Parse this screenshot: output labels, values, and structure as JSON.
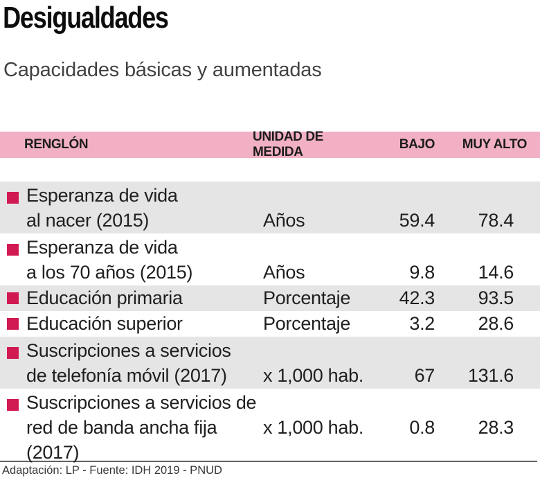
{
  "header": {
    "title": "Desigualdades",
    "subtitle": "Capacidades básicas y aumentadas"
  },
  "table": {
    "columns": {
      "item": "RENGLÓN",
      "unit": "UNIDAD DE MEDIDA",
      "low": "BAJO",
      "very_high": "MUY ALTO"
    },
    "rows": [
      {
        "lines": [
          "Esperanza de vida",
          "al nacer (2015)"
        ],
        "unit": "Años",
        "low": "59.4",
        "very_high": "78.4"
      },
      {
        "lines": [
          "Esperanza de vida",
          "a los 70 años (2015)"
        ],
        "unit": "Años",
        "low": "9.8",
        "very_high": "14.6"
      },
      {
        "lines": [
          "Educación primaria"
        ],
        "unit": "Porcentaje",
        "low": "42.3",
        "very_high": "93.5"
      },
      {
        "lines": [
          "Educación superior"
        ],
        "unit": "Porcentaje",
        "low": "3.2",
        "very_high": "28.6"
      },
      {
        "lines": [
          "Suscripciones a servicios",
          "de telefonía móvil (2017)"
        ],
        "unit": "x 1,000 hab.",
        "low": "67",
        "very_high": "131.6"
      },
      {
        "lines": [
          "Suscripciones a servicios de",
          "red de banda ancha fija (2017)"
        ],
        "unit": "x 1,000 hab.",
        "low": "0.8",
        "very_high": "28.3"
      }
    ]
  },
  "footer": {
    "credit": "Adaptación: LP - Fuente: IDH 2019 - PNUD"
  },
  "colors": {
    "header_band": "#f2b0c5",
    "row_shade": "#e5e5e6",
    "bullet": "#d21a52"
  },
  "chart_data": {
    "type": "table",
    "title": "Desigualdades",
    "subtitle": "Capacidades básicas y aumentadas",
    "columns": [
      "RENGLÓN",
      "UNIDAD DE MEDIDA",
      "BAJO",
      "MUY ALTO"
    ],
    "rows": [
      [
        "Esperanza de vida al nacer (2015)",
        "Años",
        59.4,
        78.4
      ],
      [
        "Esperanza de vida a los 70 años (2015)",
        "Años",
        9.8,
        14.6
      ],
      [
        "Educación primaria",
        "Porcentaje",
        42.3,
        93.5
      ],
      [
        "Educación superior",
        "Porcentaje",
        3.2,
        28.6
      ],
      [
        "Suscripciones a servicios de telefonía móvil (2017)",
        "x 1,000 hab.",
        67,
        131.6
      ],
      [
        "Suscripciones a servicios de red de banda ancha fija (2017)",
        "x 1,000 hab.",
        0.8,
        28.3
      ]
    ],
    "source": "Adaptación: LP - Fuente: IDH 2019 - PNUD"
  }
}
